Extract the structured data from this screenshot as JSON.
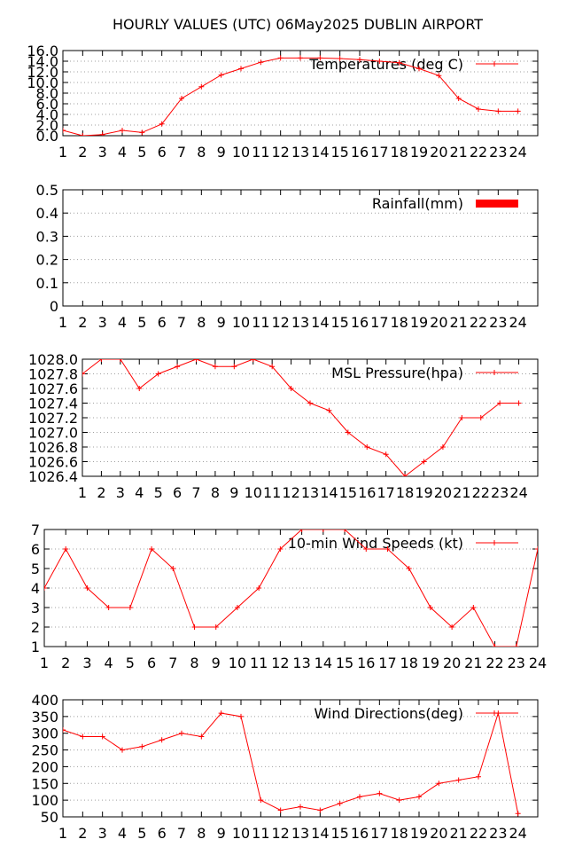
{
  "page": {
    "title": "HOURLY VALUES (UTC) 06May2025  DUBLIN AIRPORT"
  },
  "colors": {
    "series": "#ff0000",
    "grid": "#a0a0a0",
    "axis": "#000000",
    "background": "#ffffff"
  },
  "chart_data": [
    {
      "type": "line",
      "legend": "Temperatures (deg C)",
      "legend_position": "top-right",
      "grid": true,
      "x": [
        1,
        2,
        3,
        4,
        5,
        6,
        7,
        8,
        9,
        10,
        11,
        12,
        13,
        14,
        15,
        16,
        17,
        18,
        19,
        20,
        21,
        22,
        23,
        24
      ],
      "xticks": [
        "1",
        "2",
        "3",
        "4",
        "5",
        "6",
        "7",
        "8",
        "9",
        "10",
        "11",
        "12",
        "13",
        "14",
        "15",
        "16",
        "17",
        "18",
        "19",
        "20",
        "21",
        "22",
        "23",
        "24"
      ],
      "xlim": [
        1,
        25
      ],
      "ylim": [
        0,
        16
      ],
      "yticks": [
        "0.0",
        "2.0",
        "4.0",
        "6.0",
        "8.0",
        "10.0",
        "12.0",
        "14.0",
        "16.0"
      ],
      "values": [
        1.0,
        0.0,
        0.2,
        1.0,
        0.6,
        2.2,
        7.0,
        9.2,
        11.4,
        12.6,
        13.8,
        14.6,
        14.6,
        14.6,
        14.5,
        14.3,
        14.0,
        13.7,
        12.6,
        11.3,
        7.0,
        5.0,
        4.6,
        4.6
      ]
    },
    {
      "type": "bar",
      "legend": "Rainfall(mm)",
      "legend_position": "top-right",
      "grid": true,
      "x": [
        1,
        2,
        3,
        4,
        5,
        6,
        7,
        8,
        9,
        10,
        11,
        12,
        13,
        14,
        15,
        16,
        17,
        18,
        19,
        20,
        21,
        22,
        23,
        24
      ],
      "xticks": [
        "1",
        "2",
        "3",
        "4",
        "5",
        "6",
        "7",
        "8",
        "9",
        "10",
        "11",
        "12",
        "13",
        "14",
        "15",
        "16",
        "17",
        "18",
        "19",
        "20",
        "21",
        "22",
        "23",
        "24"
      ],
      "xlim": [
        1,
        25
      ],
      "ylim": [
        0,
        0.5
      ],
      "yticks": [
        "0",
        "0.1",
        "0.2",
        "0.3",
        "0.4",
        "0.5"
      ],
      "values": [
        0,
        0,
        0,
        0,
        0,
        0,
        0,
        0,
        0,
        0,
        0,
        0,
        0,
        0,
        0,
        0,
        0,
        0,
        0,
        0,
        0,
        0,
        0,
        0
      ]
    },
    {
      "type": "line",
      "legend": "MSL Pressure(hpa)",
      "legend_position": "top-right",
      "grid": true,
      "x": [
        1,
        2,
        3,
        4,
        5,
        6,
        7,
        8,
        9,
        10,
        11,
        12,
        13,
        14,
        15,
        16,
        17,
        18,
        19,
        20,
        21,
        22,
        23,
        24
      ],
      "xticks": [
        "1",
        "2",
        "3",
        "4",
        "5",
        "6",
        "7",
        "8",
        "9",
        "10",
        "11",
        "12",
        "13",
        "14",
        "15",
        "16",
        "17",
        "18",
        "19",
        "20",
        "21",
        "22",
        "23",
        "24"
      ],
      "xlim": [
        1,
        25
      ],
      "ylim": [
        1026.4,
        1028.0
      ],
      "yticks": [
        "1026.4",
        "1026.6",
        "1026.8",
        "1027.0",
        "1027.2",
        "1027.4",
        "1027.6",
        "1027.8",
        "1028.0"
      ],
      "values": [
        1027.8,
        1028.0,
        1028.0,
        1027.6,
        1027.8,
        1027.9,
        1028.0,
        1027.9,
        1027.9,
        1028.0,
        1027.9,
        1027.6,
        1027.4,
        1027.3,
        1027.0,
        1026.8,
        1026.7,
        1026.4,
        1026.6,
        1026.8,
        1027.2,
        1027.2,
        1027.4,
        1027.4
      ]
    },
    {
      "type": "line",
      "legend": "10-min Wind Speeds (kt)",
      "legend_position": "top-right",
      "grid": true,
      "x": [
        1,
        2,
        3,
        4,
        5,
        6,
        7,
        8,
        9,
        10,
        11,
        12,
        13,
        14,
        15,
        16,
        17,
        18,
        19,
        20,
        21,
        22,
        23,
        24
      ],
      "xticks": [
        "1",
        "2",
        "3",
        "4",
        "5",
        "6",
        "7",
        "8",
        "9",
        "10",
        "11",
        "12",
        "13",
        "14",
        "15",
        "16",
        "17",
        "18",
        "19",
        "20",
        "21",
        "22",
        "23",
        "24"
      ],
      "xlim": [
        1,
        24
      ],
      "ylim": [
        1,
        7
      ],
      "yticks": [
        "1",
        "2",
        "3",
        "4",
        "5",
        "6",
        "7"
      ],
      "values": [
        4,
        6,
        4,
        3,
        3,
        6,
        5,
        2,
        2,
        3,
        4,
        6,
        7,
        7,
        7,
        6,
        6,
        5,
        3,
        2,
        3,
        1,
        1,
        6
      ]
    },
    {
      "type": "line",
      "legend": "Wind Directions(deg)",
      "legend_position": "top-right",
      "grid": true,
      "x": [
        1,
        2,
        3,
        4,
        5,
        6,
        7,
        8,
        9,
        10,
        11,
        12,
        13,
        14,
        15,
        16,
        17,
        18,
        19,
        20,
        21,
        22,
        23,
        24
      ],
      "xticks": [
        "1",
        "2",
        "3",
        "4",
        "5",
        "6",
        "7",
        "8",
        "9",
        "10",
        "11",
        "12",
        "13",
        "14",
        "15",
        "16",
        "17",
        "18",
        "19",
        "20",
        "21",
        "22",
        "23",
        "24"
      ],
      "xlim": [
        1,
        25
      ],
      "ylim": [
        50,
        400
      ],
      "yticks": [
        "50",
        "100",
        "150",
        "200",
        "250",
        "300",
        "350",
        "400"
      ],
      "values": [
        310,
        290,
        290,
        250,
        260,
        280,
        300,
        290,
        360,
        350,
        100,
        70,
        80,
        70,
        90,
        110,
        120,
        100,
        110,
        150,
        160,
        170,
        360,
        60
      ]
    }
  ]
}
